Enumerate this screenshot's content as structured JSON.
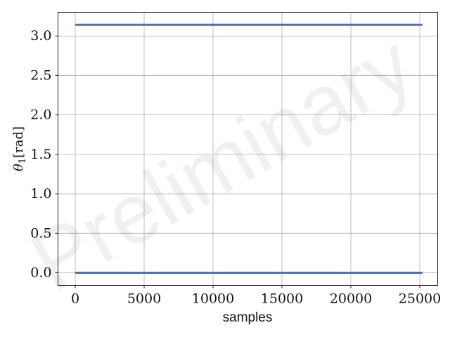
{
  "chart_data": {
    "type": "line",
    "xlabel": "samples",
    "ylabel_symbol": "θ",
    "ylabel_subscript": "1",
    "ylabel_unit": "[rad]",
    "xlim": [
      -1250,
      26300
    ],
    "ylim": [
      -0.16,
      3.3
    ],
    "xticks": [
      0,
      5000,
      10000,
      15000,
      20000,
      25000
    ],
    "xtick_labels": [
      "0",
      "5000",
      "10000",
      "15000",
      "20000",
      "25000"
    ],
    "yticks": [
      0.0,
      0.5,
      1.0,
      1.5,
      2.0,
      2.5,
      3.0
    ],
    "ytick_labels": [
      "0.0",
      "0.5",
      "1.0",
      "1.5",
      "2.0",
      "2.5",
      "3.0"
    ],
    "grid": true,
    "series": [
      {
        "color": "#4c72b0",
        "x": [
          0,
          25200
        ],
        "y": [
          3.1416,
          3.1416
        ]
      },
      {
        "color": "#4c72b0",
        "x": [
          0,
          25200
        ],
        "y": [
          0.0,
          0.0
        ]
      }
    ]
  },
  "watermark": "Preliminary"
}
